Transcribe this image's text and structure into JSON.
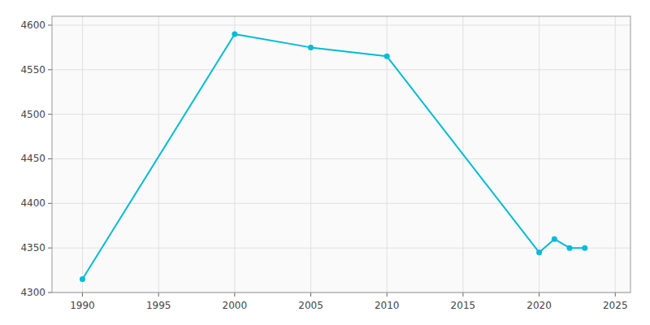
{
  "chart_data": {
    "type": "line",
    "x": [
      1990,
      2000,
      2005,
      2010,
      2020,
      2021,
      2022,
      2023
    ],
    "values": [
      4315,
      4590,
      4575,
      4565,
      4345,
      4360,
      4350,
      4350
    ],
    "color": "#00BCD4",
    "marker": "circle",
    "xlim": [
      1988,
      2026
    ],
    "ylim": [
      4300,
      4610
    ],
    "xticks": [
      1990,
      1995,
      2000,
      2005,
      2010,
      2015,
      2020,
      2025
    ],
    "yticks": [
      4300,
      4350,
      4400,
      4450,
      4500,
      4550,
      4600
    ],
    "grid": true
  }
}
